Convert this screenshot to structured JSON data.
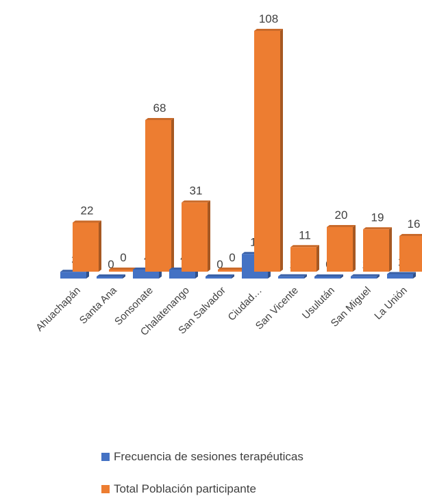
{
  "chart_data": {
    "type": "bar",
    "categories": [
      "Ahuachapán",
      "Santa Ana",
      "Sonsonate",
      "Chalatenango",
      "San Salvador",
      "Ciudad…",
      "San Vicente",
      "Usulután",
      "San Miguel",
      "La Unión"
    ],
    "series": [
      {
        "name": "Frecuencia de sesiones terapéuticas",
        "values": [
          3,
          0,
          4,
          4,
          0,
          11,
          1,
          0,
          1,
          2
        ],
        "color": "#4472C4"
      },
      {
        "name": "Total Población participante",
        "values": [
          22,
          0,
          68,
          31,
          0,
          108,
          11,
          20,
          19,
          16
        ],
        "color": "#ED7D31"
      }
    ],
    "ylim": [
      0,
      108
    ],
    "grid": false,
    "legend_position": "bottom",
    "style": "3d-clustered-column"
  }
}
